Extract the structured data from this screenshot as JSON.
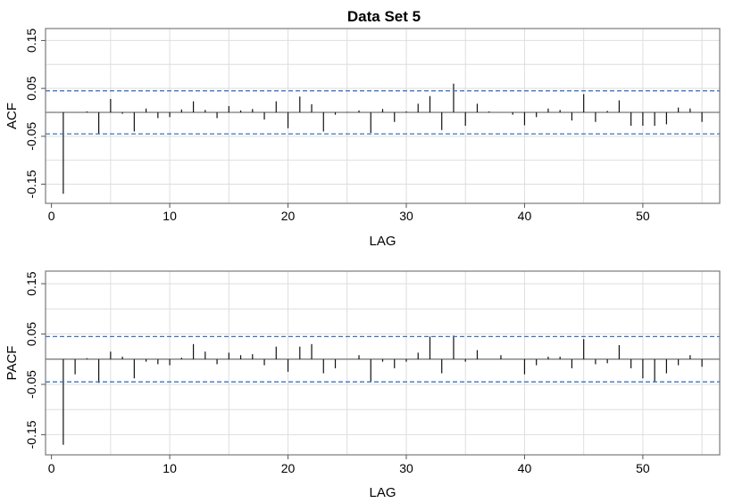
{
  "chart_data": [
    {
      "type": "bar",
      "title": "Data Set 5",
      "xlabel": "LAG",
      "ylabel": "ACF",
      "xlim": [
        -0.5,
        56.5
      ],
      "ylim": [
        -0.19,
        0.175
      ],
      "xticks": [
        0,
        10,
        20,
        30,
        40,
        50
      ],
      "yticks": [
        0.15,
        0.05,
        -0.05,
        -0.15
      ],
      "ytick_labels": [
        "0.15",
        "0.05",
        "-0.05",
        "-0.15"
      ],
      "grid": true,
      "conf_bound": 0.045,
      "colors": {
        "bars": "#111111",
        "bound": "#3b73c4",
        "grid": "#dedede",
        "frame": "#7a7a7a"
      },
      "lags": [
        1,
        2,
        3,
        4,
        5,
        6,
        7,
        8,
        9,
        10,
        11,
        12,
        13,
        14,
        15,
        16,
        17,
        18,
        19,
        20,
        21,
        22,
        23,
        24,
        25,
        26,
        27,
        28,
        29,
        30,
        31,
        32,
        33,
        34,
        35,
        36,
        37,
        38,
        39,
        40,
        41,
        42,
        43,
        44,
        45,
        46,
        47,
        48,
        49,
        50,
        51,
        52,
        53,
        54,
        55
      ],
      "values": [
        -0.17,
        0.0,
        0.002,
        -0.045,
        0.028,
        -0.003,
        -0.04,
        0.008,
        -0.012,
        -0.01,
        0.006,
        0.023,
        0.005,
        -0.012,
        0.013,
        0.004,
        0.007,
        -0.015,
        0.023,
        -0.033,
        0.033,
        0.017,
        -0.04,
        -0.005,
        0.001,
        0.004,
        -0.043,
        0.007,
        -0.02,
        0.002,
        0.018,
        0.034,
        -0.037,
        0.06,
        -0.028,
        0.018,
        0.002,
        0.0,
        -0.005,
        -0.027,
        -0.01,
        0.008,
        0.005,
        -0.017,
        0.038,
        -0.02,
        0.003,
        0.025,
        -0.028,
        -0.028,
        -0.028,
        -0.025,
        0.01,
        0.008,
        -0.02
      ]
    },
    {
      "type": "bar",
      "title": "",
      "xlabel": "LAG",
      "ylabel": "PACF",
      "xlim": [
        -0.5,
        56.5
      ],
      "ylim": [
        -0.19,
        0.175
      ],
      "xticks": [
        0,
        10,
        20,
        30,
        40,
        50
      ],
      "yticks": [
        0.15,
        0.05,
        -0.05,
        -0.15
      ],
      "ytick_labels": [
        "0.15",
        "0.05",
        "-0.05",
        "-0.15"
      ],
      "grid": true,
      "conf_bound": 0.045,
      "colors": {
        "bars": "#111111",
        "bound": "#3b73c4",
        "grid": "#dedede",
        "frame": "#7a7a7a"
      },
      "lags": [
        1,
        2,
        3,
        4,
        5,
        6,
        7,
        8,
        9,
        10,
        11,
        12,
        13,
        14,
        15,
        16,
        17,
        18,
        19,
        20,
        21,
        22,
        23,
        24,
        25,
        26,
        27,
        28,
        29,
        30,
        31,
        32,
        33,
        34,
        35,
        36,
        37,
        38,
        39,
        40,
        41,
        42,
        43,
        44,
        45,
        46,
        47,
        48,
        49,
        50,
        51,
        52,
        53,
        54,
        55
      ],
      "values": [
        -0.17,
        -0.03,
        0.002,
        -0.047,
        0.015,
        0.005,
        -0.038,
        -0.005,
        -0.01,
        -0.012,
        0.003,
        0.03,
        0.015,
        -0.01,
        0.013,
        0.008,
        0.01,
        -0.012,
        0.025,
        -0.025,
        0.025,
        0.03,
        -0.028,
        -0.018,
        0.0,
        0.008,
        -0.045,
        -0.005,
        -0.018,
        -0.005,
        0.013,
        0.045,
        -0.028,
        0.047,
        -0.005,
        0.018,
        0.0,
        0.008,
        0.0,
        -0.03,
        -0.012,
        0.005,
        0.005,
        -0.018,
        0.04,
        -0.01,
        -0.008,
        0.028,
        -0.018,
        -0.038,
        -0.045,
        -0.028,
        -0.012,
        0.008,
        -0.015
      ]
    }
  ]
}
